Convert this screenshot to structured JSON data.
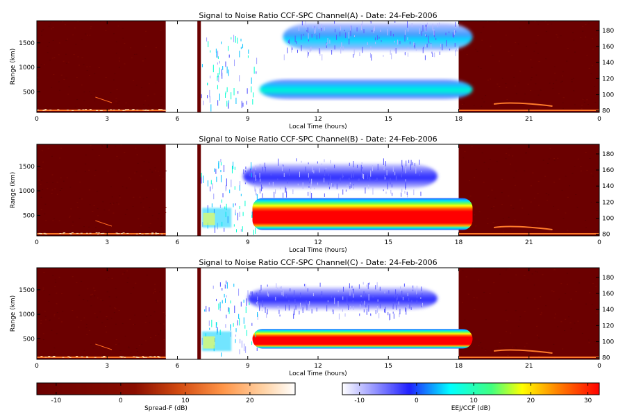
{
  "chart_data": [
    {
      "type": "heatmap",
      "title": "Signal to Noise Ratio CCF-SPC Channel(A) - Date: 24-Feb-2006",
      "xlabel": "Local Time (hours)",
      "ylabel": "Range (km)",
      "x_ticks": [
        "0",
        "3",
        "6",
        "9",
        "12",
        "15",
        "18",
        "21",
        "0"
      ],
      "y_ticks_left": [
        "500",
        "1000",
        "1500"
      ],
      "y_ticks_right": [
        "80",
        "100",
        "120",
        "140",
        "160",
        "180"
      ],
      "xlim": [
        0,
        24
      ],
      "ylim_left": [
        80,
        1950
      ],
      "ylim_right": [
        78,
        192
      ],
      "spreadf_gap_hours": [
        5.5,
        6.85
      ],
      "spreadf_bar_hours": [
        6.85,
        7.0
      ],
      "eej_window_hours": [
        7.0,
        18.0
      ],
      "eej_layers": [
        {
          "x": [
            9.5,
            18.0
          ],
          "y": [
            350,
            750
          ],
          "peak_db": 15
        },
        {
          "x": [
            10.5,
            18.0
          ],
          "y": [
            1350,
            1900
          ],
          "peak_db": 10
        }
      ]
    },
    {
      "type": "heatmap",
      "title": "Signal to Noise Ratio CCF-SPC Channel(B) - Date: 24-Feb-2006",
      "xlabel": "Local Time (hours)",
      "ylabel": "Range (km)",
      "x_ticks": [
        "0",
        "3",
        "6",
        "9",
        "12",
        "15",
        "18",
        "21",
        "0"
      ],
      "y_ticks_left": [
        "500",
        "1000",
        "1500"
      ],
      "y_ticks_right": [
        "80",
        "100",
        "120",
        "140",
        "160",
        "180"
      ],
      "xlim": [
        0,
        24
      ],
      "ylim_left": [
        80,
        1950
      ],
      "ylim_right": [
        78,
        192
      ],
      "spreadf_gap_hours": [
        5.5,
        6.85
      ],
      "spreadf_bar_hours": [
        6.85,
        7.0
      ],
      "eej_window_hours": [
        7.0,
        18.0
      ],
      "eej_layers": [
        {
          "x": [
            9.2,
            18.0
          ],
          "y": [
            200,
            850
          ],
          "peak_db": 32
        },
        {
          "x": [
            8.8,
            16.5
          ],
          "y": [
            1050,
            1550
          ],
          "peak_db": 0
        }
      ]
    },
    {
      "type": "heatmap",
      "title": "Signal to Noise Ratio CCF-SPC Channel(C) - Date: 24-Feb-2006",
      "xlabel": "Local Time (hours)",
      "ylabel": "Range (km)",
      "x_ticks": [
        "0",
        "3",
        "6",
        "9",
        "12",
        "15",
        "18",
        "21",
        "0"
      ],
      "y_ticks_left": [
        "500",
        "1000",
        "1500"
      ],
      "y_ticks_right": [
        "80",
        "100",
        "120",
        "140",
        "160",
        "180"
      ],
      "xlim": [
        0,
        24
      ],
      "ylim_left": [
        80,
        1950
      ],
      "ylim_right": [
        78,
        192
      ],
      "spreadf_gap_hours": [
        5.5,
        6.85
      ],
      "spreadf_bar_hours": [
        6.85,
        7.0
      ],
      "eej_window_hours": [
        7.0,
        18.0
      ],
      "eej_layers": [
        {
          "x": [
            9.2,
            18.0
          ],
          "y": [
            300,
            700
          ],
          "peak_db": 30
        },
        {
          "x": [
            9.0,
            16.5
          ],
          "y": [
            1100,
            1550
          ],
          "peak_db": 0
        }
      ]
    }
  ],
  "colorbars": [
    {
      "label": "Spread-F (dB)",
      "ticks": [
        "-10",
        "0",
        "10",
        "20"
      ],
      "range": [
        -13,
        27
      ],
      "colors": [
        "#6b0000",
        "#c13000",
        "#ff8c3c",
        "#ffffff"
      ]
    },
    {
      "label": "EEJ/CCF (dB)",
      "ticks": [
        "-10",
        "0",
        "10",
        "20",
        "30"
      ],
      "range": [
        -13,
        32
      ],
      "colors": [
        "#ffffff",
        "#3a3aff",
        "#00ffff",
        "#ffff00",
        "#ff0000"
      ]
    }
  ]
}
